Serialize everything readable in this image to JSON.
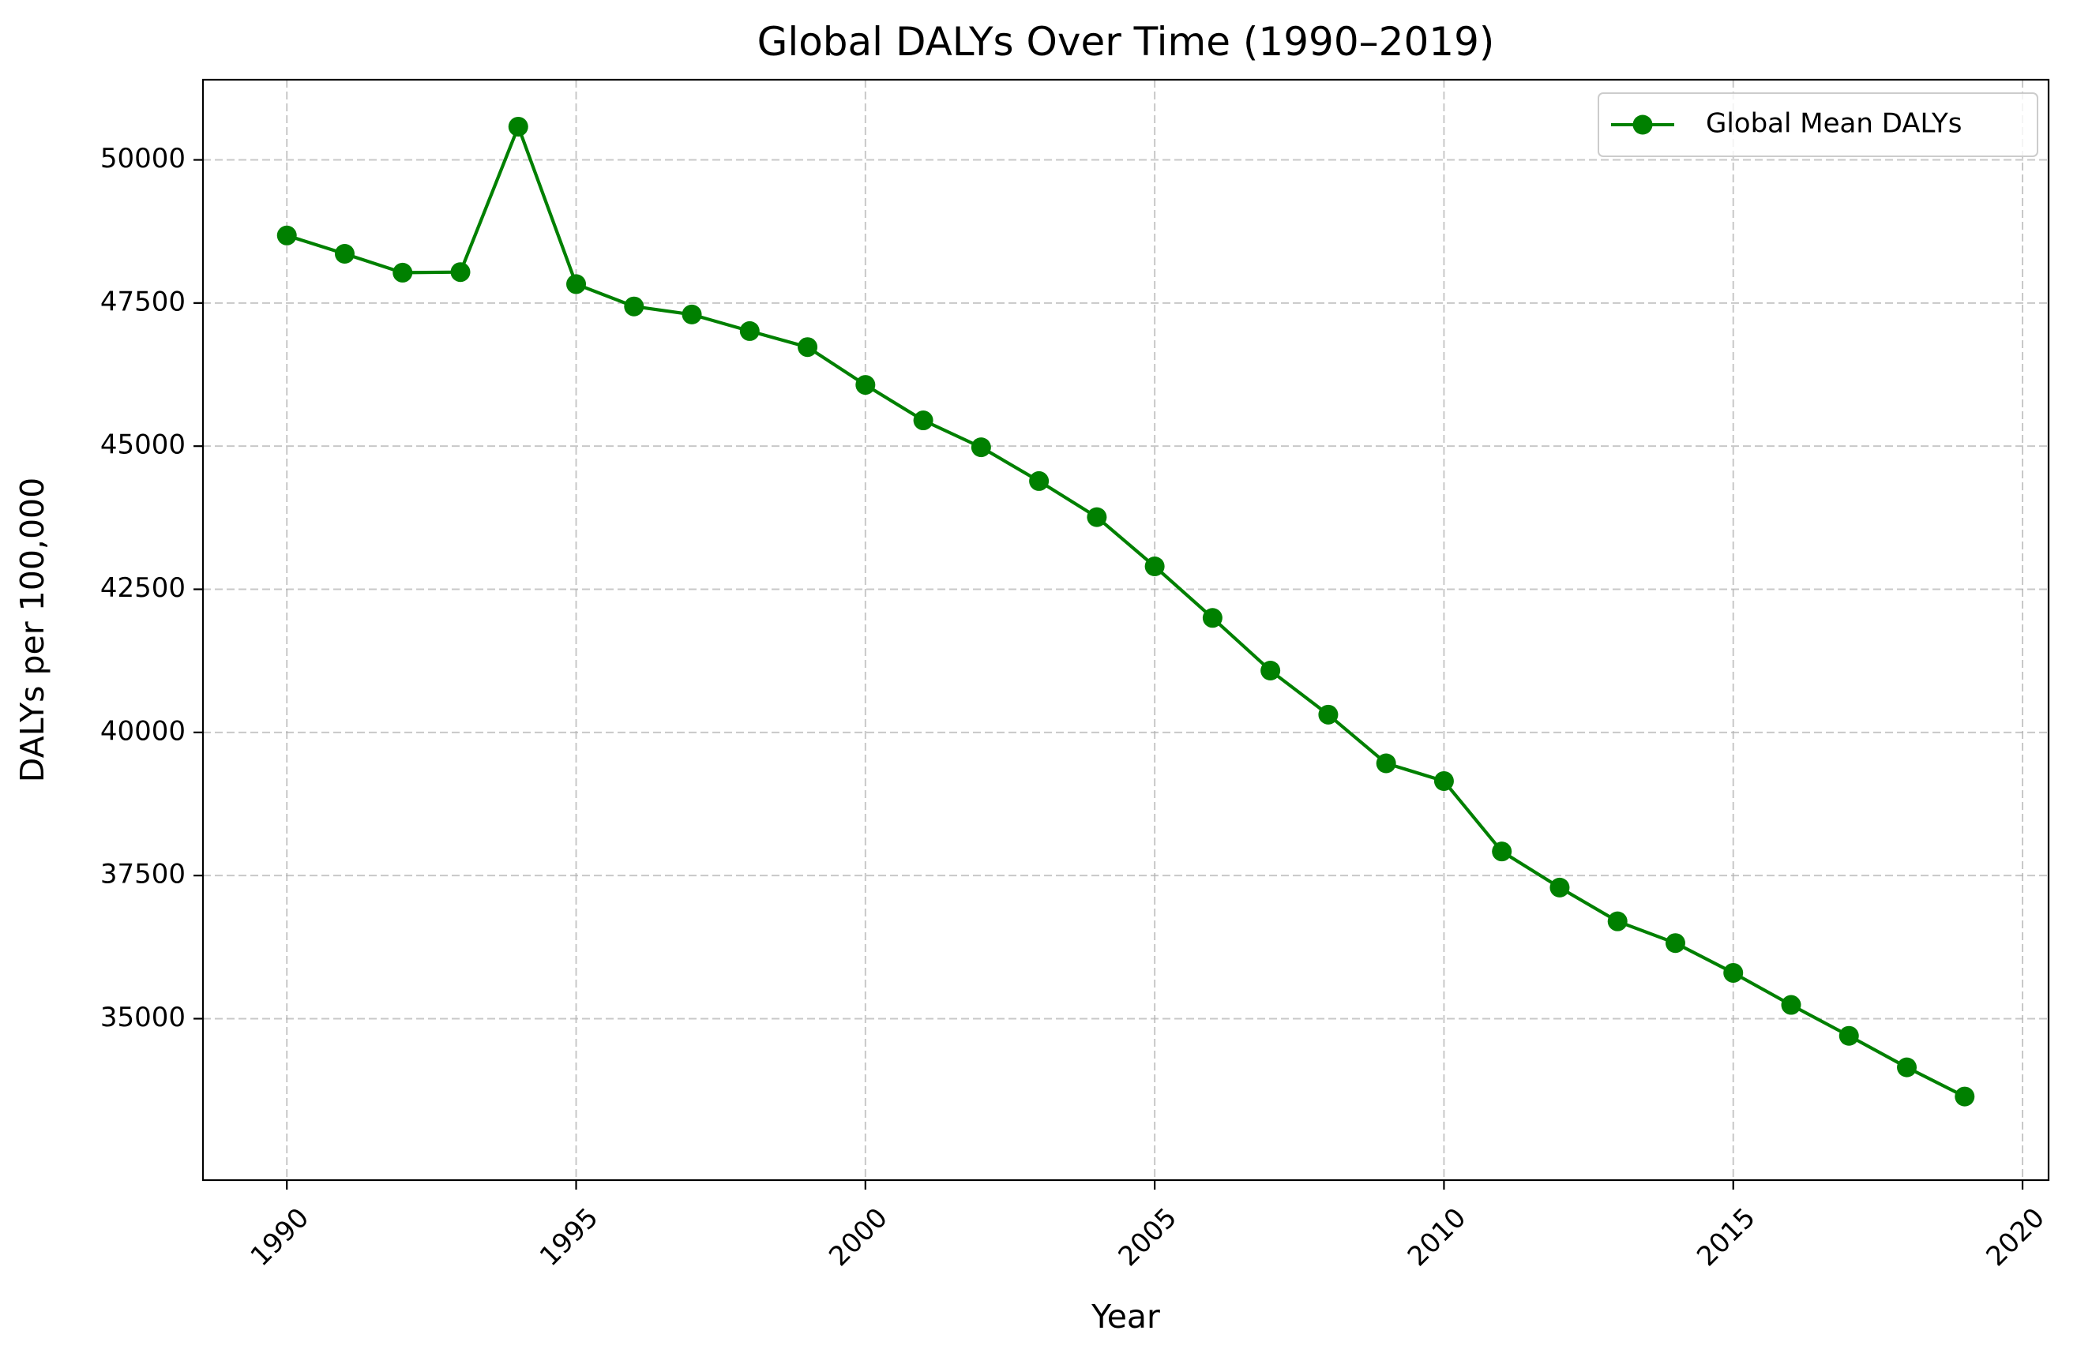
{
  "chart_data": {
    "type": "line",
    "title": "Global DALYs Over Time (1990–2019)",
    "xlabel": "Year",
    "ylabel": "DALYs per 100,000",
    "xlim": [
      1988.55,
      2020.45
    ],
    "ylim": [
      32180,
      51400
    ],
    "x_ticks": [
      1990,
      1995,
      2000,
      2005,
      2010,
      2015,
      2020
    ],
    "y_ticks": [
      35000,
      37500,
      40000,
      42500,
      45000,
      47500,
      50000
    ],
    "x_tick_rotation_deg": 45,
    "grid": true,
    "legend_position": "upper right",
    "series": [
      {
        "name": "Global Mean DALYs",
        "color": "#008000",
        "marker": "circle",
        "x": [
          1990,
          1991,
          1992,
          1993,
          1994,
          1995,
          1996,
          1997,
          1998,
          1999,
          2000,
          2001,
          2002,
          2003,
          2004,
          2005,
          2006,
          2007,
          2008,
          2009,
          2010,
          2011,
          2012,
          2013,
          2014,
          2015,
          2016,
          2017,
          2018,
          2019
        ],
        "y": [
          48680,
          48360,
          48030,
          48040,
          50580,
          47830,
          47440,
          47300,
          47010,
          46730,
          46070,
          45450,
          44980,
          44390,
          43760,
          42900,
          42000,
          41080,
          40310,
          39460,
          39150,
          37920,
          37290,
          36700,
          36320,
          35800,
          35240,
          34700,
          34150,
          33640
        ]
      }
    ]
  }
}
